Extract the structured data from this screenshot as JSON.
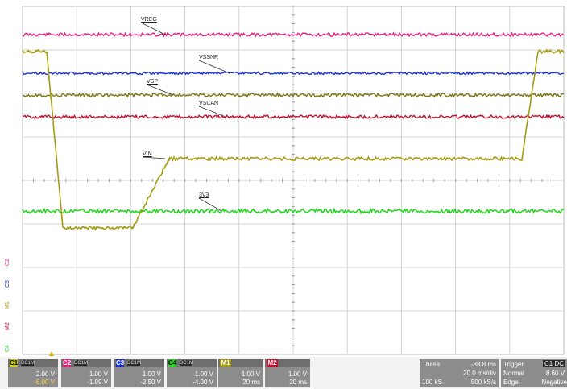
{
  "traces": [
    {
      "name": "VREG",
      "color": "#e8207a"
    },
    {
      "name": "VSSNR",
      "color": "#1b2fd6"
    },
    {
      "name": "VSP",
      "color": "#7a7510"
    },
    {
      "name": "VSCAN",
      "color": "#c3102c"
    },
    {
      "name": "VIN",
      "color": "#a59b12"
    },
    {
      "name": "3V3",
      "color": "#22d61e"
    }
  ],
  "side_labels": [
    {
      "text": "C2",
      "color": "#e8207a"
    },
    {
      "text": "C3",
      "color": "#1b2fd6"
    },
    {
      "text": "M1",
      "color": "#a59b12"
    },
    {
      "text": "M2",
      "color": "#c3102c"
    },
    {
      "text": "C4",
      "color": "#22d61e"
    }
  ],
  "channels": [
    {
      "tag": "C1",
      "tag_color": "#c8c81e",
      "dark_label": "DC1M",
      "scale": "2.00 V",
      "offset": "-6.00 V"
    },
    {
      "tag": "C2",
      "tag_color": "#e8207a",
      "dark_label": "DC1M",
      "scale": "1.00 V",
      "offset": "-1.99 V"
    },
    {
      "tag": "C3",
      "tag_color": "#1b2fd6",
      "dark_label": "DC1M",
      "scale": "1.00 V",
      "offset": "-2.50 V"
    },
    {
      "tag": "C4",
      "tag_color": "#22d61e",
      "dark_label": "DC1M",
      "scale": "1.00 V",
      "offset": "-4.00 V"
    },
    {
      "tag": "M1",
      "tag_color": "#a59b12",
      "dark_label": "",
      "scale": "1.00 V",
      "offset": "20 ms"
    },
    {
      "tag": "M2",
      "tag_color": "#c3102c",
      "dark_label": "",
      "scale": "1.00 V",
      "offset": "20 ms"
    }
  ],
  "timebase": {
    "label": "Tbase",
    "value": "-88.8 ms",
    "div": "20.0 ms/div",
    "samples": "100 kS",
    "rate": "500 kS/s"
  },
  "trigger": {
    "label": "Trigger",
    "source": "C1 DC",
    "mode": "Normal",
    "level": "8.60 V",
    "type": "Edge",
    "slope": "Negative"
  }
}
